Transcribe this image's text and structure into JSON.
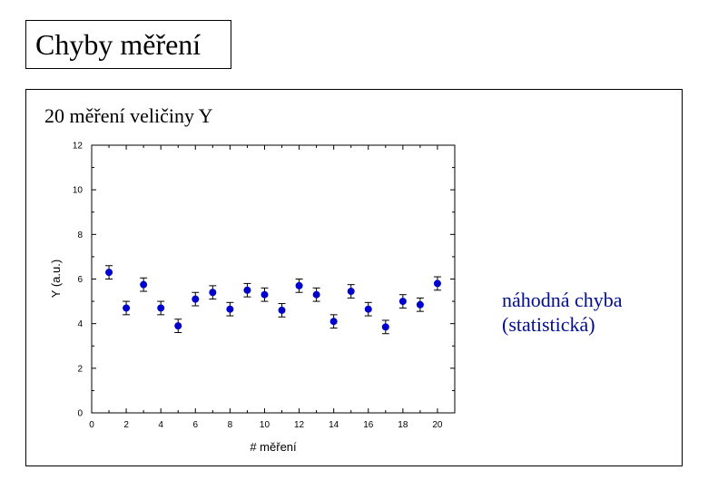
{
  "page": {
    "title": "Chyby měření",
    "subtitle": "20 měření veličiny Y",
    "annotation_line1": "náhodná chyba",
    "annotation_line2": "(statistická)"
  },
  "chart_data": {
    "type": "scatter",
    "title": "",
    "xlabel": "# měření",
    "ylabel": "Y (a.u.)",
    "xlim": [
      0,
      21
    ],
    "ylim": [
      0,
      12
    ],
    "xticks": [
      0,
      2,
      4,
      6,
      8,
      10,
      12,
      14,
      16,
      18,
      20
    ],
    "yticks": [
      0,
      2,
      4,
      6,
      8,
      10,
      12
    ],
    "grid": false,
    "marker_color": "#0000cc",
    "series": [
      {
        "x": [
          1,
          2,
          3,
          4,
          5,
          6,
          7,
          8,
          9,
          10,
          11,
          12,
          13,
          14,
          15,
          16,
          17,
          18,
          19,
          20
        ],
        "y": [
          6.3,
          4.7,
          5.75,
          4.7,
          3.9,
          5.1,
          5.4,
          4.65,
          5.5,
          5.3,
          4.6,
          5.7,
          5.3,
          4.1,
          5.45,
          4.65,
          3.85,
          5.0,
          4.85,
          5.8
        ],
        "yerr": [
          0.3,
          0.3,
          0.3,
          0.3,
          0.3,
          0.3,
          0.3,
          0.3,
          0.3,
          0.3,
          0.3,
          0.3,
          0.3,
          0.3,
          0.3,
          0.3,
          0.3,
          0.3,
          0.3,
          0.3
        ]
      }
    ]
  }
}
